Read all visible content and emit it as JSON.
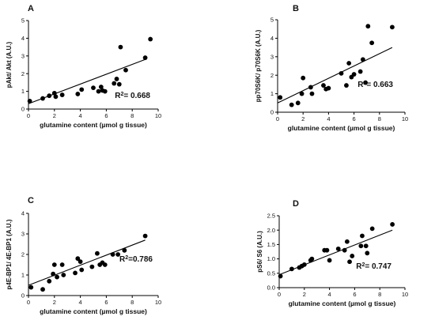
{
  "chart_data": [
    {
      "type": "scatter",
      "panel": "A",
      "xlabel": "glutamine content (µmol g tissue)",
      "ylabel": "pAkt/ Akt (A.U.)",
      "xlim": [
        0,
        10
      ],
      "ylim": [
        0,
        5
      ],
      "xticks": [
        "0",
        "2",
        "4",
        "6",
        "8",
        "10"
      ],
      "yticks": [
        "0",
        "1",
        "2",
        "3",
        "4",
        "5"
      ],
      "annotation": "R²= 0.668",
      "fit": {
        "x": [
          0,
          9
        ],
        "y": [
          0.3,
          2.8
        ]
      },
      "points": [
        {
          "x": 0.1,
          "y": 0.45
        },
        {
          "x": 1.1,
          "y": 0.6
        },
        {
          "x": 1.6,
          "y": 0.75
        },
        {
          "x": 2.0,
          "y": 0.9
        },
        {
          "x": 2.1,
          "y": 0.7
        },
        {
          "x": 2.6,
          "y": 0.8
        },
        {
          "x": 3.8,
          "y": 0.85
        },
        {
          "x": 4.1,
          "y": 1.1
        },
        {
          "x": 5.0,
          "y": 1.2
        },
        {
          "x": 5.4,
          "y": 1.0
        },
        {
          "x": 5.6,
          "y": 1.25
        },
        {
          "x": 5.7,
          "y": 1.05
        },
        {
          "x": 5.9,
          "y": 1.0
        },
        {
          "x": 6.6,
          "y": 1.45
        },
        {
          "x": 6.8,
          "y": 1.7
        },
        {
          "x": 7.0,
          "y": 1.4
        },
        {
          "x": 7.1,
          "y": 3.5
        },
        {
          "x": 7.5,
          "y": 2.2
        },
        {
          "x": 9.0,
          "y": 2.9
        },
        {
          "x": 9.4,
          "y": 3.95
        }
      ]
    },
    {
      "type": "scatter",
      "panel": "B",
      "xlabel": "glutamine content (µmol g tissue)",
      "ylabel": "pp70S6K/ p70S6K (A.U.)",
      "xlim": [
        0,
        10
      ],
      "ylim": [
        0,
        5
      ],
      "xticks": [
        "0",
        "2",
        "4",
        "6",
        "8",
        "10"
      ],
      "yticks": [
        "0",
        "1",
        "2",
        "3",
        "4",
        "5"
      ],
      "annotation": "R²= 0.663",
      "fit": {
        "x": [
          0,
          9
        ],
        "y": [
          0.5,
          3.5
        ]
      },
      "points": [
        {
          "x": 0.2,
          "y": 0.8
        },
        {
          "x": 1.1,
          "y": 0.4
        },
        {
          "x": 1.6,
          "y": 0.5
        },
        {
          "x": 1.9,
          "y": 1.0
        },
        {
          "x": 2.0,
          "y": 1.85
        },
        {
          "x": 2.6,
          "y": 1.35
        },
        {
          "x": 2.7,
          "y": 1.0
        },
        {
          "x": 3.6,
          "y": 1.45
        },
        {
          "x": 3.8,
          "y": 1.25
        },
        {
          "x": 4.0,
          "y": 1.3
        },
        {
          "x": 5.0,
          "y": 2.1
        },
        {
          "x": 5.4,
          "y": 1.45
        },
        {
          "x": 5.6,
          "y": 2.65
        },
        {
          "x": 5.8,
          "y": 1.9
        },
        {
          "x": 6.0,
          "y": 2.05
        },
        {
          "x": 6.5,
          "y": 2.2
        },
        {
          "x": 6.7,
          "y": 2.85
        },
        {
          "x": 6.9,
          "y": 1.6
        },
        {
          "x": 7.1,
          "y": 4.65
        },
        {
          "x": 7.4,
          "y": 3.75
        },
        {
          "x": 9.0,
          "y": 4.6
        }
      ]
    },
    {
      "type": "scatter",
      "panel": "C",
      "xlabel": "glutamine content (µmol g tissue)",
      "ylabel": "p4E-BP1/ 4E-BP1 (A.U.)",
      "xlim": [
        0,
        10
      ],
      "ylim": [
        0,
        4
      ],
      "xticks": [
        "0",
        "2",
        "4",
        "6",
        "8",
        "10"
      ],
      "yticks": [
        "0",
        "1",
        "2",
        "3",
        "4"
      ],
      "annotation": "R²=0.786",
      "fit": {
        "x": [
          0,
          9
        ],
        "y": [
          0.5,
          2.7
        ]
      },
      "points": [
        {
          "x": 0.2,
          "y": 0.4
        },
        {
          "x": 1.1,
          "y": 0.3
        },
        {
          "x": 1.6,
          "y": 0.7
        },
        {
          "x": 1.9,
          "y": 1.05
        },
        {
          "x": 2.0,
          "y": 1.5
        },
        {
          "x": 2.2,
          "y": 0.9
        },
        {
          "x": 2.6,
          "y": 1.5
        },
        {
          "x": 2.7,
          "y": 1.0
        },
        {
          "x": 3.6,
          "y": 1.1
        },
        {
          "x": 3.8,
          "y": 1.8
        },
        {
          "x": 4.0,
          "y": 1.65
        },
        {
          "x": 4.1,
          "y": 1.25
        },
        {
          "x": 4.9,
          "y": 1.4
        },
        {
          "x": 5.3,
          "y": 2.05
        },
        {
          "x": 5.5,
          "y": 1.5
        },
        {
          "x": 5.7,
          "y": 1.6
        },
        {
          "x": 5.9,
          "y": 1.5
        },
        {
          "x": 6.5,
          "y": 2.0
        },
        {
          "x": 6.9,
          "y": 2.0
        },
        {
          "x": 7.4,
          "y": 2.2
        },
        {
          "x": 9.0,
          "y": 2.9
        }
      ]
    },
    {
      "type": "scatter",
      "panel": "D",
      "xlabel": "glutamine content (µmol g tissue)",
      "ylabel": "pS6/ S6 (A.U.)",
      "xlim": [
        0,
        10
      ],
      "ylim": [
        0,
        2.5
      ],
      "xticks": [
        "0",
        "2",
        "4",
        "6",
        "8",
        "10"
      ],
      "yticks": [
        "0.0",
        "0.5",
        "1.0",
        "1.5",
        "2.0",
        "2.5"
      ],
      "annotation": "R²= 0.747",
      "fit": {
        "x": [
          0,
          9
        ],
        "y": [
          0.45,
          2.0
        ]
      },
      "points": [
        {
          "x": 0.1,
          "y": 0.4
        },
        {
          "x": 1.0,
          "y": 0.65
        },
        {
          "x": 1.6,
          "y": 0.7
        },
        {
          "x": 1.8,
          "y": 0.75
        },
        {
          "x": 2.0,
          "y": 0.8
        },
        {
          "x": 2.5,
          "y": 0.95
        },
        {
          "x": 2.6,
          "y": 1.0
        },
        {
          "x": 3.6,
          "y": 1.3
        },
        {
          "x": 3.8,
          "y": 1.3
        },
        {
          "x": 4.0,
          "y": 0.95
        },
        {
          "x": 4.7,
          "y": 1.35
        },
        {
          "x": 5.2,
          "y": 1.3
        },
        {
          "x": 5.4,
          "y": 1.6
        },
        {
          "x": 5.6,
          "y": 0.9
        },
        {
          "x": 5.8,
          "y": 1.1
        },
        {
          "x": 6.5,
          "y": 1.45
        },
        {
          "x": 6.6,
          "y": 1.8
        },
        {
          "x": 6.9,
          "y": 1.45
        },
        {
          "x": 7.0,
          "y": 1.2
        },
        {
          "x": 7.4,
          "y": 2.05
        },
        {
          "x": 9.0,
          "y": 2.2
        }
      ]
    }
  ]
}
